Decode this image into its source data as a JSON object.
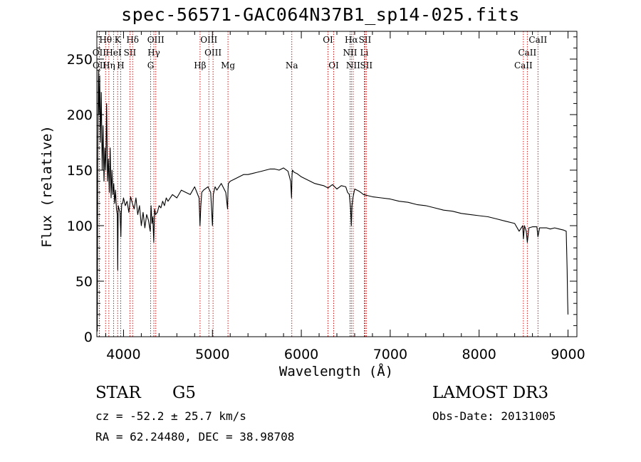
{
  "chart_data": {
    "type": "line",
    "title": "spec-56571-GAC064N37B1_sp14-025.fits",
    "xlabel": "Wavelength (Å)",
    "ylabel": "Flux (relative)",
    "xlim": [
      3700,
      9100
    ],
    "ylim": [
      0,
      275
    ],
    "x_ticks": [
      4000,
      5000,
      6000,
      7000,
      8000,
      9000
    ],
    "x_tick_labels": [
      "4000",
      "5000",
      "6000",
      "7000",
      "8000",
      "9000"
    ],
    "y_ticks": [
      0,
      50,
      100,
      150,
      200,
      250
    ],
    "y_tick_labels": [
      "0",
      "50",
      "100",
      "150",
      "200",
      "250"
    ],
    "series": [
      {
        "name": "flux",
        "x": [
          3700,
          3705,
          3710,
          3718,
          3725,
          3732,
          3740,
          3750,
          3760,
          3770,
          3780,
          3790,
          3800,
          3810,
          3820,
          3830,
          3840,
          3850,
          3860,
          3870,
          3880,
          3890,
          3900,
          3910,
          3920,
          3930,
          3935,
          3940,
          3950,
          3960,
          3970,
          3975,
          3980,
          3990,
          4000,
          4020,
          4040,
          4060,
          4080,
          4100,
          4120,
          4140,
          4160,
          4180,
          4200,
          4220,
          4240,
          4260,
          4280,
          4300,
          4310,
          4320,
          4330,
          4340,
          4350,
          4360,
          4380,
          4400,
          4420,
          4440,
          4460,
          4480,
          4500,
          4550,
          4600,
          4650,
          4700,
          4750,
          4800,
          4850,
          4860,
          4870,
          4880,
          4900,
          4950,
          4980,
          5000,
          5010,
          5030,
          5050,
          5100,
          5150,
          5170,
          5175,
          5180,
          5200,
          5250,
          5300,
          5350,
          5400,
          5450,
          5500,
          5550,
          5600,
          5650,
          5700,
          5750,
          5800,
          5850,
          5880,
          5890,
          5895,
          5900,
          5920,
          5950,
          6000,
          6050,
          6100,
          6150,
          6200,
          6250,
          6300,
          6350,
          6400,
          6450,
          6500,
          6520,
          6540,
          6555,
          6563,
          6570,
          6580,
          6600,
          6650,
          6700,
          6750,
          6800,
          6900,
          7000,
          7100,
          7200,
          7300,
          7400,
          7500,
          7600,
          7700,
          7800,
          7900,
          8000,
          8100,
          8200,
          8300,
          8400,
          8450,
          8490,
          8498,
          8510,
          8530,
          8542,
          8560,
          8600,
          8650,
          8662,
          8680,
          8720,
          8760,
          8800,
          8850,
          8900,
          8950,
          8980,
          8990,
          8995,
          9000
        ],
        "values": [
          15,
          5,
          160,
          240,
          200,
          235,
          175,
          220,
          150,
          190,
          140,
          170,
          150,
          210,
          140,
          160,
          130,
          170,
          125,
          150,
          128,
          138,
          120,
          132,
          115,
          110,
          60,
          118,
          115,
          112,
          90,
          110,
          120,
          120,
          125,
          118,
          122,
          112,
          126,
          120,
          115,
          125,
          110,
          118,
          100,
          112,
          98,
          110,
          105,
          95,
          118,
          102,
          108,
          85,
          115,
          110,
          112,
          118,
          116,
          122,
          118,
          125,
          122,
          128,
          125,
          132,
          130,
          128,
          135,
          125,
          100,
          118,
          130,
          132,
          135,
          130,
          100,
          128,
          135,
          132,
          138,
          130,
          115,
          132,
          138,
          140,
          142,
          144,
          146,
          146,
          147,
          148,
          149,
          150,
          151,
          151,
          150,
          152,
          149,
          140,
          125,
          145,
          150,
          148,
          147,
          144,
          142,
          140,
          138,
          137,
          136,
          134,
          137,
          133,
          136,
          135,
          130,
          128,
          115,
          100,
          118,
          125,
          133,
          131,
          128,
          127,
          126,
          125,
          124,
          122,
          121,
          119,
          118,
          116,
          114,
          113,
          111,
          110,
          109,
          108,
          106,
          104,
          102,
          95,
          100,
          88,
          100,
          95,
          85,
          98,
          99,
          99,
          90,
          98,
          98,
          98,
          97,
          98,
          97,
          96,
          95,
          60,
          35,
          20
        ]
      }
    ],
    "lines_top": [
      {
        "label": "Hθ",
        "x": 3798
      },
      {
        "label": "K",
        "x": 3934
      },
      {
        "label": "Hδ",
        "x": 4102
      },
      {
        "label": "OIII",
        "x": 4363
      },
      {
        "label": "OIII",
        "x": 4960
      },
      {
        "label": "OI",
        "x": 6300
      },
      {
        "label": "Hα",
        "x": 6563
      },
      {
        "label": "SII",
        "x": 6716
      },
      {
        "label": "CaII",
        "x": 8662
      }
    ],
    "lines_mid": [
      {
        "label": "OII",
        "x": 3727
      },
      {
        "label": "HeI",
        "x": 3889
      },
      {
        "label": "SII",
        "x": 4072
      },
      {
        "label": "Hγ",
        "x": 4341
      },
      {
        "label": "OIII",
        "x": 5007
      },
      {
        "label": "NII",
        "x": 6548
      },
      {
        "label": "Li",
        "x": 6708
      },
      {
        "label": "CaII",
        "x": 8542
      }
    ],
    "lines_bot": [
      {
        "label": "OII",
        "x": 3729
      },
      {
        "label": "Hη",
        "x": 3835
      },
      {
        "label": "H",
        "x": 3968
      },
      {
        "label": "G",
        "x": 4305
      },
      {
        "label": "Hβ",
        "x": 4861
      },
      {
        "label": "Mg",
        "x": 5175
      },
      {
        "label": "Na",
        "x": 5893
      },
      {
        "label": "OI",
        "x": 6364
      },
      {
        "label": "NII",
        "x": 6583
      },
      {
        "label": "SII",
        "x": 6731
      },
      {
        "label": "CaII",
        "x": 8498
      }
    ]
  },
  "info": {
    "class_label": "STAR",
    "subclass_label": "G5",
    "survey_label": "LAMOST DR3",
    "cz_text": "cz = -52.2 ± 25.7 km/s",
    "obs_date_text": "Obs-Date: 20131005",
    "radec_text": "RA =  62.24480, DEC =  38.98708"
  },
  "colors": {
    "line_marker": "#cc0000",
    "spectrum": "#000000",
    "axes": "#000000"
  }
}
